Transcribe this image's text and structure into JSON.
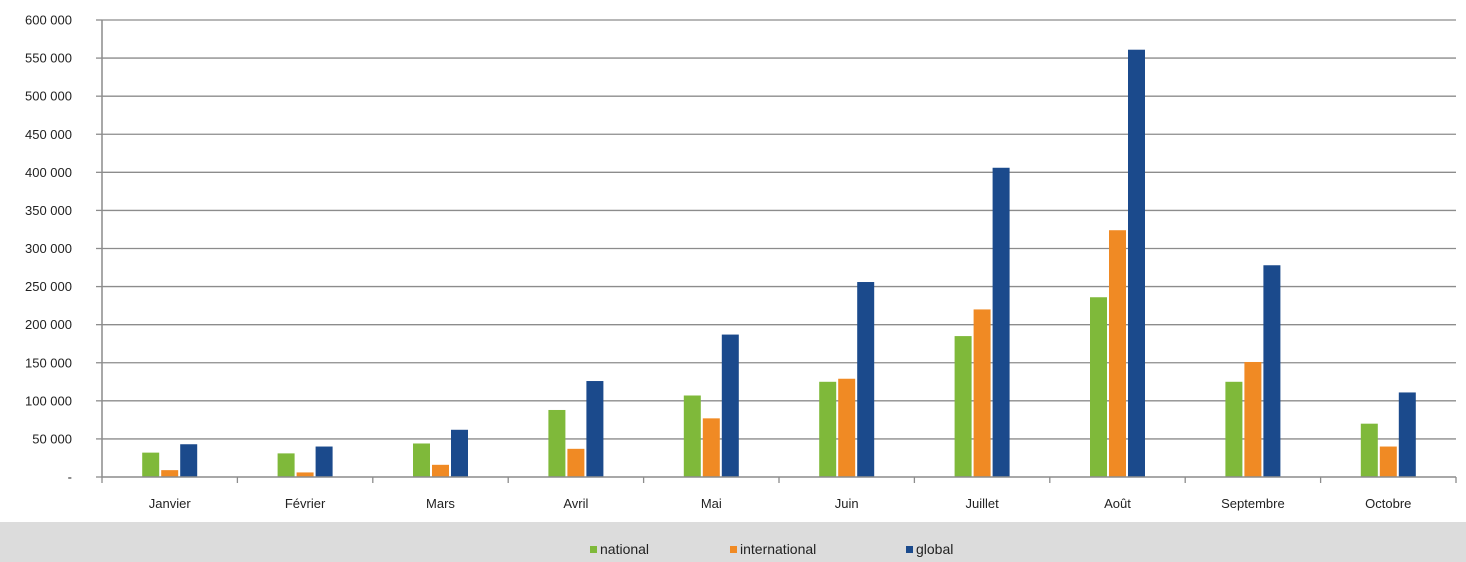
{
  "chart_data": {
    "type": "bar",
    "title": "",
    "xlabel": "",
    "ylabel": "",
    "categories": [
      "Janvier",
      "Février",
      "Mars",
      "Avril",
      "Mai",
      "Juin",
      "Juillet",
      "Août",
      "Septembre",
      "Octobre"
    ],
    "series": [
      {
        "name": "national",
        "color": "#7FB93A",
        "values": [
          32000,
          31000,
          44000,
          88000,
          107000,
          125000,
          185000,
          236000,
          125000,
          70000
        ]
      },
      {
        "name": "international",
        "color": "#F08A24",
        "values": [
          9000,
          6000,
          16000,
          37000,
          77000,
          129000,
          220000,
          324000,
          151000,
          40000
        ]
      },
      {
        "name": "global",
        "color": "#1B4A8C",
        "values": [
          43000,
          40000,
          62000,
          126000,
          187000,
          256000,
          406000,
          561000,
          278000,
          111000
        ]
      }
    ],
    "ylim": [
      0,
      600000
    ],
    "y_ticks": [
      {
        "value": 0,
        "label": "-"
      },
      {
        "value": 50000,
        "label": "50 000"
      },
      {
        "value": 100000,
        "label": "100 000"
      },
      {
        "value": 150000,
        "label": "150 000"
      },
      {
        "value": 200000,
        "label": "200 000"
      },
      {
        "value": 250000,
        "label": "250 000"
      },
      {
        "value": 300000,
        "label": "300 000"
      },
      {
        "value": 350000,
        "label": "350 000"
      },
      {
        "value": 400000,
        "label": "400 000"
      },
      {
        "value": 450000,
        "label": "450 000"
      },
      {
        "value": 500000,
        "label": "500 000"
      },
      {
        "value": 550000,
        "label": "550 000"
      },
      {
        "value": 600000,
        "label": "600 000"
      }
    ],
    "grid": true,
    "legend_position": "bottom",
    "legend_background": "#DCDCDC"
  }
}
